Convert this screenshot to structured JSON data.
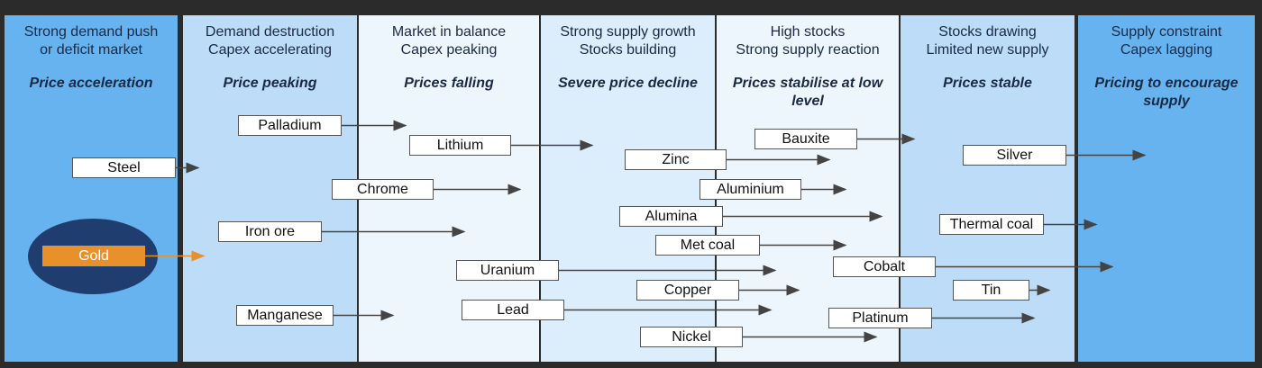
{
  "columns": [
    {
      "header": [
        "Strong demand push",
        "or deficit market"
      ],
      "subtitle": "Price acceleration"
    },
    {
      "header": [
        "Demand destruction",
        "Capex accelerating"
      ],
      "subtitle": "Price peaking"
    },
    {
      "header": [
        "Market in balance",
        "Capex peaking"
      ],
      "subtitle": "Prices falling"
    },
    {
      "header": [
        "Strong supply growth",
        "Stocks building"
      ],
      "subtitle": "Severe price decline"
    },
    {
      "header": [
        "High stocks",
        "Strong supply reaction"
      ],
      "subtitle": "Prices stabilise at low level"
    },
    {
      "header": [
        "Stocks drawing",
        "Limited new supply"
      ],
      "subtitle": "Prices stable"
    },
    {
      "header": [
        "Supply constraint",
        "Capex lagging"
      ],
      "subtitle": "Pricing to encourage supply"
    }
  ],
  "nodes": [
    {
      "label": "Palladium"
    },
    {
      "label": "Lithium"
    },
    {
      "label": "Steel"
    },
    {
      "label": "Zinc"
    },
    {
      "label": "Bauxite"
    },
    {
      "label": "Silver"
    },
    {
      "label": "Chrome"
    },
    {
      "label": "Aluminium"
    },
    {
      "label": "Alumina"
    },
    {
      "label": "Thermal coal"
    },
    {
      "label": "Iron ore"
    },
    {
      "label": "Met coal"
    },
    {
      "label": "Gold"
    },
    {
      "label": "Cobalt"
    },
    {
      "label": "Uranium"
    },
    {
      "label": "Copper"
    },
    {
      "label": "Tin"
    },
    {
      "label": "Manganese"
    },
    {
      "label": "Lead"
    },
    {
      "label": "Platinum"
    },
    {
      "label": "Nickel"
    }
  ]
}
